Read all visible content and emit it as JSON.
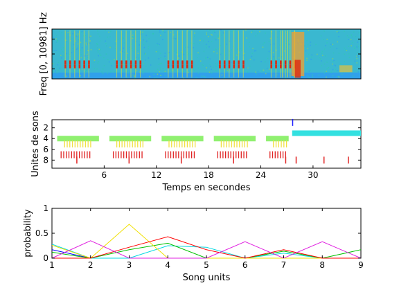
{
  "colors": {
    "spec_low": "#2f9cf0",
    "spec_mid": "#30c8b4",
    "spec_high": "#e4e030",
    "spec_hot": "#dd2a10",
    "units_1": "#1a1aff",
    "units_2": "#33e0e0",
    "units_3": "#90f070",
    "units_4": "#f0e040",
    "units_5": "#e02020",
    "prob_red": "#ff0000",
    "prob_green": "#00c000",
    "prob_cyan": "#00d8e0",
    "prob_magenta": "#e020e0",
    "prob_yellow": "#f0e000"
  },
  "chart_data": [
    {
      "type": "heatmap",
      "title": "",
      "ylabel": "Freq [0, 10981] Hz",
      "xlabel": "",
      "xlim": [
        0,
        36
      ],
      "ylim": [
        0,
        10981
      ],
      "grid": false,
      "song_bursts_time": [
        1.5,
        7.5,
        13.5,
        19.5,
        25.5
      ],
      "call_bursts_time": [
        26.8,
        27.4,
        28.2
      ],
      "broadband_call_time": [
        27.9,
        29.4
      ],
      "noise_tail_time": [
        33.5,
        35.0
      ],
      "dominant_band_hz": [
        2800,
        3600
      ]
    },
    {
      "type": "scatter",
      "title": "",
      "xlabel": "Temps en secondes",
      "ylabel": "Unites de sons",
      "xlim": [
        0,
        35.5
      ],
      "ylim": [
        9.5,
        0.5
      ],
      "xticks": [
        6,
        12,
        18,
        24,
        30
      ],
      "yticks": [
        2,
        4,
        6,
        8
      ],
      "y_reversed": true,
      "grid": false,
      "series": [
        {
          "unit": 1,
          "segments": [
            [
              27.6,
              27.7
            ]
          ]
        },
        {
          "unit": 3,
          "segments": [
            [
              27.6,
              35.5
            ]
          ]
        },
        {
          "unit": 4,
          "segments": [
            [
              0.6,
              5.4
            ],
            [
              6.6,
              11.4
            ],
            [
              12.6,
              17.4
            ],
            [
              18.6,
              23.4
            ],
            [
              24.6,
              27.2
            ]
          ]
        },
        {
          "unit": 5,
          "segments": [
            [
              1.4,
              4.6
            ],
            [
              7.4,
              10.6
            ],
            [
              13.4,
              16.6
            ],
            [
              19.4,
              22.6
            ],
            [
              25.4,
              27.0
            ]
          ]
        },
        {
          "unit": 7,
          "segments": [
            [
              1.0,
              4.4
            ],
            [
              7.0,
              10.4
            ],
            [
              13.0,
              16.4
            ],
            [
              19.0,
              22.4
            ],
            [
              25.0,
              27.0
            ]
          ]
        },
        {
          "unit": 8,
          "segments": [
            [
              2.8,
              2.9
            ],
            [
              8.8,
              8.9
            ],
            [
              14.8,
              14.9
            ],
            [
              20.8,
              20.9
            ],
            [
              26.8,
              26.9
            ],
            [
              28.0,
              28.1
            ],
            [
              31.2,
              31.3
            ],
            [
              34.0,
              34.1
            ]
          ]
        }
      ]
    },
    {
      "type": "line",
      "title": "",
      "xlabel": "Song units",
      "ylabel": "probability",
      "x": [
        1,
        2,
        3,
        4,
        5,
        6,
        7,
        8,
        9
      ],
      "xlim": [
        1,
        9
      ],
      "ylim": [
        0,
        1
      ],
      "xticks": [
        1,
        2,
        3,
        4,
        5,
        6,
        7,
        8,
        9
      ],
      "yticks": [
        0,
        0.5,
        1
      ],
      "grid": false,
      "series": [
        {
          "values": [
            0.17,
            0.0,
            0.0,
            0.0,
            0.0,
            0.0,
            0.0,
            0.0,
            0.0
          ],
          "color": "#0000ff"
        },
        {
          "values": [
            0.28,
            0.0,
            0.0,
            0.25,
            0.22,
            0.0,
            0.1,
            0.0,
            0.0
          ],
          "color": "#00d8e0"
        },
        {
          "values": [
            0.12,
            0.0,
            0.17,
            0.3,
            0.0,
            0.0,
            0.14,
            0.0,
            0.17
          ],
          "color": "#00c000"
        },
        {
          "values": [
            0.26,
            0.0,
            0.68,
            0.0,
            0.0,
            0.0,
            0.0,
            0.0,
            0.0
          ],
          "color": "#f0e000"
        },
        {
          "values": [
            0.0,
            0.0,
            0.22,
            0.43,
            0.17,
            0.0,
            0.17,
            0.0,
            0.0
          ],
          "color": "#ff0000"
        },
        {
          "values": [
            0.0,
            0.35,
            0.0,
            0.0,
            0.0,
            0.33,
            0.0,
            0.33,
            0.0
          ],
          "color": "#e020e0"
        }
      ]
    }
  ]
}
